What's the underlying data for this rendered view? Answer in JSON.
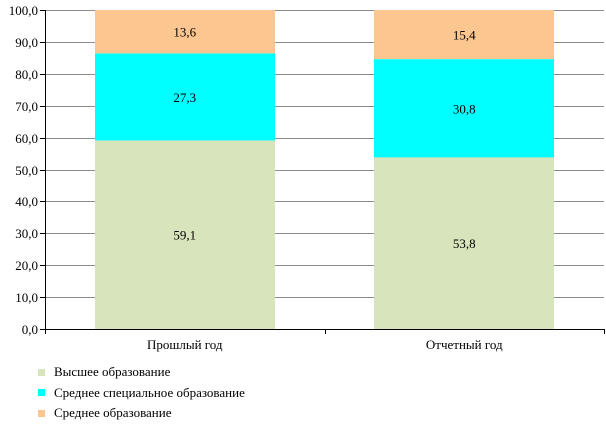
{
  "chart_data": {
    "type": "bar",
    "stacked": true,
    "categories": [
      "Прошлый год",
      "Отчетный год"
    ],
    "series": [
      {
        "name": "Высшее образование",
        "values": [
          59.1,
          53.8
        ],
        "labels": [
          "59,1",
          "53,8"
        ],
        "color": "#d8e4bc"
      },
      {
        "name": "Среднее специальное образование",
        "values": [
          27.3,
          30.8
        ],
        "labels": [
          "27,3",
          "30,8"
        ],
        "color": "#00ffff"
      },
      {
        "name": "Среднее образование",
        "values": [
          13.6,
          15.4
        ],
        "labels": [
          "13,6",
          "15,4"
        ],
        "color": "#fcc690"
      }
    ],
    "ylim": [
      0,
      100
    ],
    "yticks": [
      "0,0",
      "10,0",
      "20,0",
      "30,0",
      "40,0",
      "50,0",
      "60,0",
      "70,0",
      "80,0",
      "90,0",
      "100,0"
    ],
    "grid": true,
    "legend_position": "bottom-left",
    "title": "",
    "xlabel": "",
    "ylabel": ""
  }
}
